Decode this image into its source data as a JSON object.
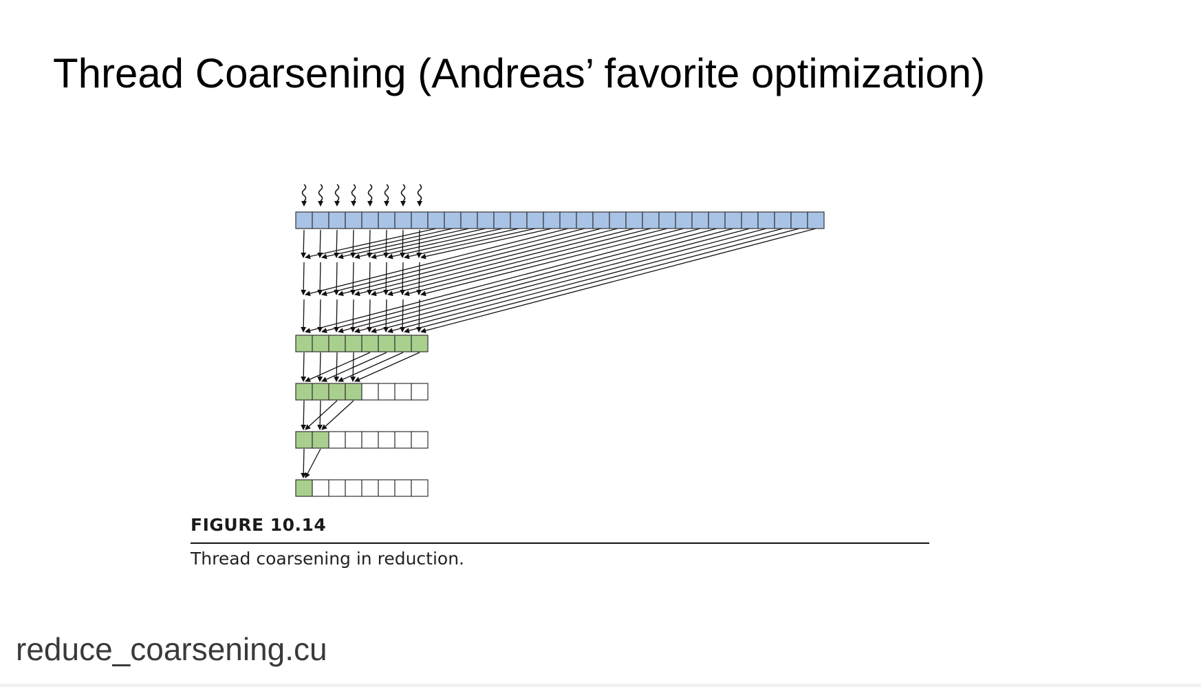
{
  "slide": {
    "title": "Thread Coarsening (Andreas’ favorite optimization)",
    "filename": "reduce_coarsening.cu"
  },
  "figure": {
    "label": "FIGURE 10.14",
    "caption": "Thread coarsening in reduction.",
    "threads": 8,
    "input_elements": 32,
    "coarsening_factor": 4,
    "tree_levels": [
      8,
      4,
      2,
      1
    ],
    "colors": {
      "input_cell": "#a8c3e6",
      "partial_sum_cell": "#a9cf8e",
      "empty_cell": "#ffffff",
      "outline": "#333333",
      "arrow": "#111111"
    }
  }
}
